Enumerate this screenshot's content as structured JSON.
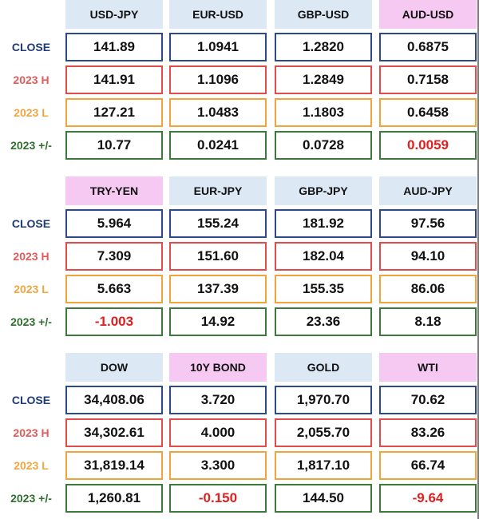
{
  "row_labels": {
    "close": "CLOSE",
    "high": "2023 H",
    "low": "2023 L",
    "change": "2023 +/-"
  },
  "colors": {
    "header_blue": "#dce9f5",
    "header_pink": "#f6c9f3",
    "close": "#2c4a8a",
    "high": "#e14b4b",
    "low": "#f2a43a",
    "change": "#3c7a3c",
    "negative": "#e02020"
  },
  "panels": [
    {
      "headers": [
        {
          "label": "USD-JPY",
          "style": "blue"
        },
        {
          "label": "EUR-USD",
          "style": "blue"
        },
        {
          "label": "GBP-USD",
          "style": "blue"
        },
        {
          "label": "AUD-USD",
          "style": "pink"
        }
      ],
      "close": [
        "141.89",
        "1.0941",
        "1.2820",
        "0.6875"
      ],
      "high": [
        "141.91",
        "1.1096",
        "1.2849",
        "0.7158"
      ],
      "low": [
        "127.21",
        "1.0483",
        "1.1803",
        "0.6458"
      ],
      "change": [
        "10.77",
        "0.0241",
        "0.0728",
        "0.0059"
      ],
      "change_negative": [
        false,
        false,
        false,
        true
      ]
    },
    {
      "headers": [
        {
          "label": "TRY-YEN",
          "style": "pink"
        },
        {
          "label": "EUR-JPY",
          "style": "blue"
        },
        {
          "label": "GBP-JPY",
          "style": "blue"
        },
        {
          "label": "AUD-JPY",
          "style": "blue"
        }
      ],
      "close": [
        "5.964",
        "155.24",
        "181.92",
        "97.56"
      ],
      "high": [
        "7.309",
        "151.60",
        "182.04",
        "94.10"
      ],
      "low": [
        "5.663",
        "137.39",
        "155.35",
        "86.06"
      ],
      "change": [
        "-1.003",
        "14.92",
        "23.36",
        "8.18"
      ],
      "change_negative": [
        true,
        false,
        false,
        false
      ]
    },
    {
      "headers": [
        {
          "label": "DOW",
          "style": "blue"
        },
        {
          "label": "10Y BOND",
          "style": "pink"
        },
        {
          "label": "GOLD",
          "style": "blue"
        },
        {
          "label": "WTI",
          "style": "pink"
        }
      ],
      "close": [
        "34,408.06",
        "3.720",
        "1,970.70",
        "70.62"
      ],
      "high": [
        "34,302.61",
        "4.000",
        "2,055.70",
        "83.26"
      ],
      "low": [
        "31,819.14",
        "3.300",
        "1,817.10",
        "66.74"
      ],
      "change": [
        "1,260.81",
        "-0.150",
        "144.50",
        "-9.64"
      ],
      "change_negative": [
        false,
        true,
        false,
        true
      ]
    }
  ]
}
